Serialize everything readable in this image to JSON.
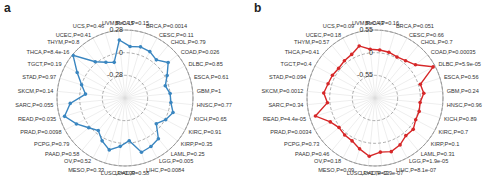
{
  "chart_data": [
    {
      "type": "radar",
      "title": "a",
      "color": "#3a86c0",
      "marker": "circle",
      "grid": true,
      "categories": [
        "BLCA,P=0.15",
        "BRCA,P=0.0014",
        "CESC,P=0.11",
        "CHOL,P=0.79",
        "COAD,P=0.026",
        "DLBC,P=0.85",
        "ESCA,P=0.61",
        "GBM,P=1",
        "HNSC,P=0.77",
        "KICH,P=0.65",
        "KIRC,P=0.91",
        "KIRP,P=0.35",
        "LAML,P=0.25",
        "LGG,P=0.005",
        "LIHC,P=0.0084",
        "LUAD,P=0.58",
        "LUSC,P=0.39",
        "MESO,P=0.33",
        "OV,P=0.52",
        "PAAD,P=0.58",
        "PCPG,P=0.79",
        "PRAD,P=0.0098",
        "READ,P=0.035",
        "SARC,P=0.055",
        "SKCM,P=0.14",
        "STAD,P=0.97",
        "TGCT,P=0.19",
        "THCA,P=8.4e-16",
        "THYM,P=0.8",
        "UCEC,P=0.41",
        "UCS,P=0.46",
        "UVM,P=0.15"
      ],
      "values": [
        0.08,
        0.1,
        0.09,
        0.05,
        0.13,
        0.03,
        -0.04,
        0.0,
        0.01,
        0.06,
        0.01,
        -0.06,
        0.09,
        0.12,
        0.14,
        -0.03,
        0.04,
        0.11,
        0.04,
        -0.04,
        0.02,
        0.12,
        0.22,
        0.12,
        -0.07,
        0.0,
        0.11,
        0.27,
        0.02,
        -0.06,
        -0.1,
        0.16
      ],
      "ylim": [
        -0.56,
        0.28
      ],
      "yticks": [
        -0.28,
        0,
        0.28
      ]
    },
    {
      "type": "radar",
      "title": "b",
      "color": "#d62728",
      "marker": "circle",
      "grid": true,
      "categories": [
        "BLCA,P=0.16",
        "BRCA,P=0.051",
        "CESC,P=0.66",
        "CHOL,P=0.7",
        "COAD,P=0.00035",
        "DLBC,P=5.9e-05",
        "ESCA,P=0.56",
        "GBM,P=0.24",
        "HNSC,P=0.96",
        "KICH,P=0.89",
        "KIRC,P=0.7",
        "KIRP,P=0.1",
        "LAML,P=0.31",
        "LGG,P=1.9e-05",
        "LIHC,P=8.1e-07",
        "LUAD,P=3.9e-07",
        "LUSC,P=1.7e-13",
        "MESO,P=0.09",
        "OV,P=0.18",
        "PAAD,P=0.46",
        "PCPG,P=0.73",
        "PRAD,P=0.0034",
        "READ,P=4.4e-05",
        "SARC,P=0.34",
        "SKCM,P=0.0012",
        "STAD,P=0.094",
        "TGCT,P=0.4",
        "THCA,P=0.41",
        "THYM,P=0.57",
        "UCEC,P=0.18",
        "UCS,P=0.09",
        "UVM,P=0.43"
      ],
      "values": [
        0.07,
        0.06,
        0.03,
        0.07,
        0.17,
        0.5,
        0.05,
        0.09,
        0.0,
        0.02,
        0.02,
        0.1,
        0.08,
        0.19,
        0.26,
        0.22,
        0.32,
        0.19,
        0.08,
        0.06,
        0.03,
        0.13,
        0.41,
        0.06,
        0.15,
        0.09,
        0.07,
        0.04,
        0.07,
        0.1,
        0.22,
        0.09
      ],
      "ylim": [
        -1.1,
        0.55
      ],
      "yticks": [
        -0.55,
        0,
        0.55
      ]
    }
  ]
}
